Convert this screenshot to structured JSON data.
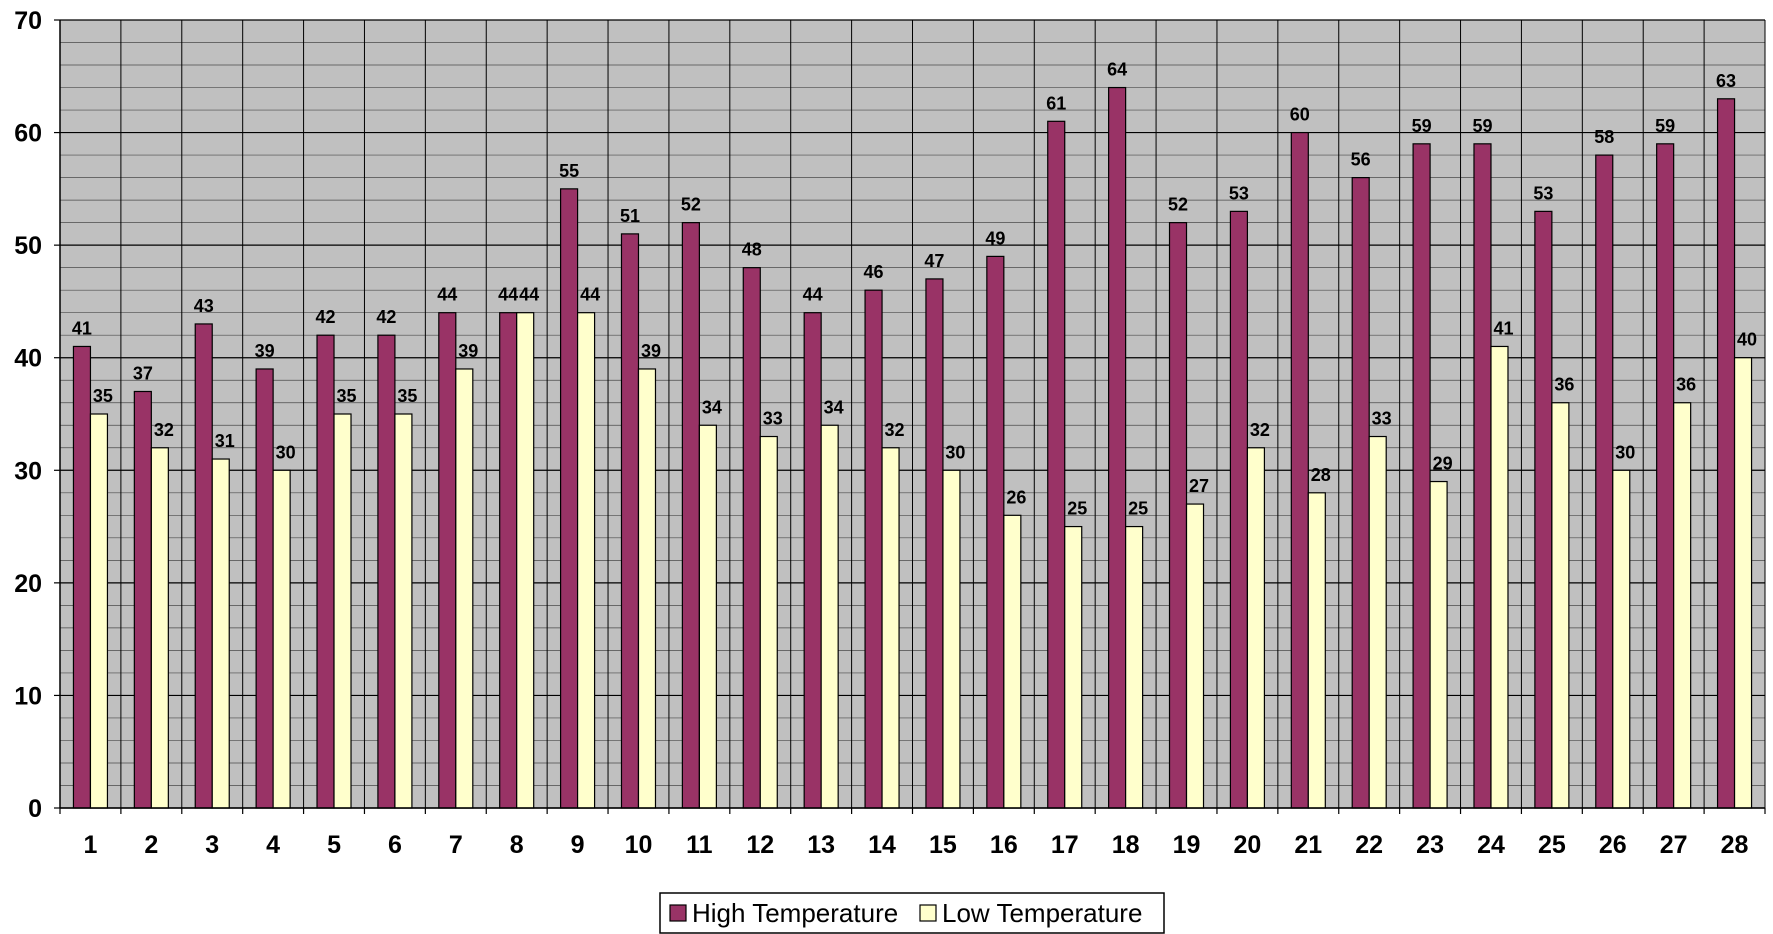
{
  "chart_data": {
    "type": "bar",
    "title": "",
    "xlabel": "",
    "ylabel": "",
    "ylim": [
      0,
      70
    ],
    "y_ticks": [
      0,
      10,
      20,
      30,
      40,
      50,
      60,
      70
    ],
    "grid": true,
    "legend_position": "bottom",
    "categories": [
      "1",
      "2",
      "3",
      "4",
      "5",
      "6",
      "7",
      "8",
      "9",
      "10",
      "11",
      "12",
      "13",
      "14",
      "15",
      "16",
      "17",
      "18",
      "19",
      "20",
      "21",
      "22",
      "23",
      "24",
      "25",
      "26",
      "27",
      "28"
    ],
    "series": [
      {
        "name": "High Temperature",
        "color": "#993366",
        "values": [
          41,
          37,
          43,
          39,
          42,
          42,
          44,
          44,
          55,
          51,
          52,
          48,
          44,
          46,
          47,
          49,
          61,
          64,
          52,
          53,
          60,
          56,
          59,
          59,
          53,
          58,
          59,
          63
        ]
      },
      {
        "name": "Low Temperature",
        "color": "#FFFFCC",
        "values": [
          35,
          32,
          31,
          30,
          35,
          35,
          39,
          44,
          44,
          39,
          34,
          33,
          34,
          32,
          30,
          26,
          25,
          25,
          27,
          32,
          28,
          33,
          29,
          41,
          36,
          30,
          36,
          40
        ]
      }
    ],
    "plot_background": "#C0C0C0"
  }
}
